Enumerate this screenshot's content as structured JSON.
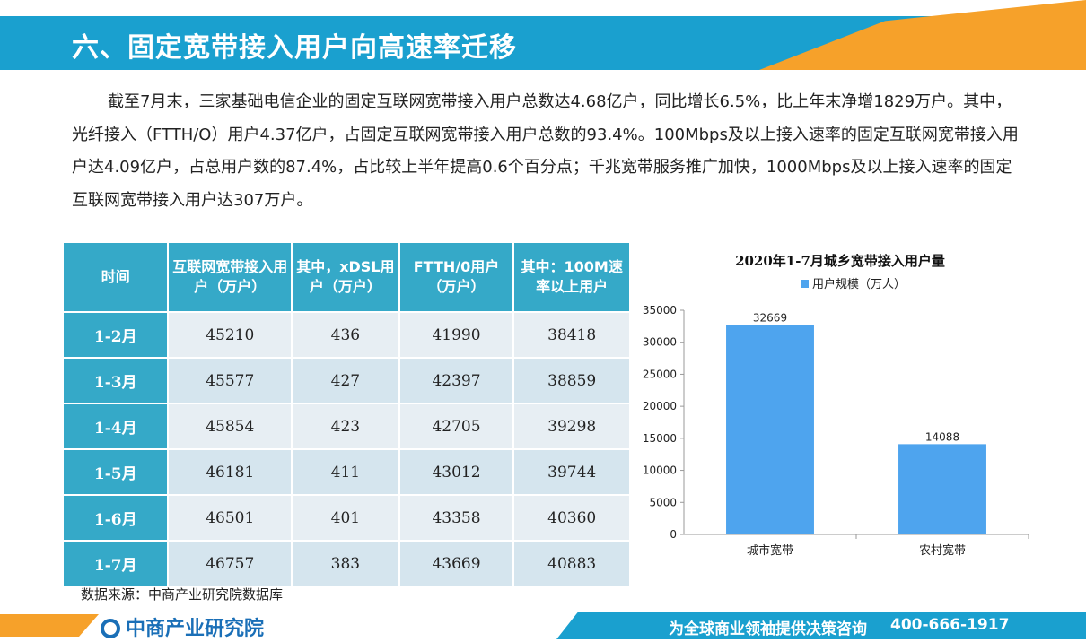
{
  "header": {
    "title": "六、固定宽带接入用户向高速率迁移"
  },
  "paragraph": "截至7月末，三家基础电信企业的固定互联网宽带接入用户总数达4.68亿户，同比增长6.5%，比上年末净增1829万户。其中，光纤接入（FTTH/O）用户4.37亿户，占固定互联网宽带接入用户总数的93.4%。100Mbps及以上接入速率的固定互联网宽带接入用户达4.09亿户，占总用户数的87.4%，占比较上半年提高0.6个百分点；千兆宽带服务推广加快，1000Mbps及以上接入速率的固定互联网宽带接入用户达307万户。",
  "table": {
    "headers": [
      "时间",
      "互联网宽带接入用户（万户）",
      "其中，xDSL用户（万户）",
      "FTTH/0用户（万户）",
      "其中：100M速率以上用户"
    ],
    "rows": [
      [
        "1-2月",
        "45210",
        "436",
        "41990",
        "38418"
      ],
      [
        "1-3月",
        "45577",
        "427",
        "42397",
        "38859"
      ],
      [
        "1-4月",
        "45854",
        "423",
        "42705",
        "39298"
      ],
      [
        "1-5月",
        "46181",
        "411",
        "43012",
        "39744"
      ],
      [
        "1-6月",
        "46501",
        "401",
        "43358",
        "40360"
      ],
      [
        "1-7月",
        "46757",
        "383",
        "43669",
        "40883"
      ]
    ]
  },
  "source": "数据来源：中商产业研究院数据库",
  "chart_data": {
    "type": "bar",
    "title": "2020年1-7月城乡宽带接入用户量",
    "legend": "top-center",
    "categories": [
      "城市宽带",
      "农村宽带"
    ],
    "series": [
      {
        "name": "用户规模（万人）",
        "values": [
          32669,
          14088
        ]
      }
    ],
    "ylim": [
      0,
      35000
    ],
    "yticks": [
      0,
      5000,
      10000,
      15000,
      20000,
      25000,
      30000,
      35000
    ],
    "grid": false,
    "bar_color": "#4ea4ee"
  },
  "footer": {
    "brand": "中商产业研究院",
    "slogan": "为全球商业领袖提供决策咨询",
    "phone": "400-666-1917"
  },
  "colors": {
    "header_blue": "#1aa0cf",
    "accent_orange": "#f6a12a",
    "table_header": "#35a9c8"
  }
}
